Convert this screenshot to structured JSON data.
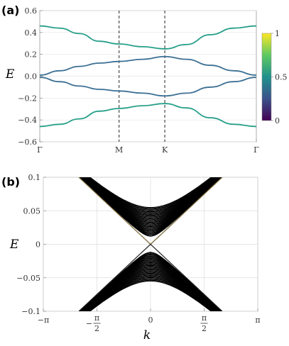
{
  "chart_data": [
    {
      "panel": "(a)",
      "type": "line",
      "ylabel": "E",
      "xlabel": "",
      "ylim": [
        -0.6,
        0.6
      ],
      "yticks": [
        "0.6",
        "0.4",
        "0.2",
        "0.0",
        "-0.2",
        "-0.4",
        "-0.6"
      ],
      "xticks": [
        "Γ",
        "M",
        "K",
        "Γ"
      ],
      "xtick_positions": [
        0,
        1,
        1.5773,
        2.732
      ],
      "vlines_at": [
        1,
        1.5773
      ],
      "grid": true,
      "colorbar": {
        "range": [
          0,
          1
        ],
        "ticks": [
          "1",
          "0.5",
          "0"
        ],
        "colors": [
          "#440154",
          "#3b528b",
          "#21918c",
          "#5ec962",
          "#fde725"
        ]
      },
      "series": [
        {
          "color": "#27a08a",
          "points": [
            [
              0,
              0.46
            ],
            [
              0.25,
              0.44
            ],
            [
              0.5,
              0.39
            ],
            [
              0.75,
              0.32
            ],
            [
              1.0,
              0.295
            ],
            [
              1.3,
              0.27
            ],
            [
              1.5773,
              0.25
            ],
            [
              1.85,
              0.29
            ],
            [
              2.15,
              0.38
            ],
            [
              2.45,
              0.44
            ],
            [
              2.732,
              0.46
            ]
          ]
        },
        {
          "color": "#3b6f94",
          "points": [
            [
              0,
              0.01
            ],
            [
              0.25,
              0.05
            ],
            [
              0.5,
              0.09
            ],
            [
              0.75,
              0.12
            ],
            [
              1.0,
              0.135
            ],
            [
              1.3,
              0.155
            ],
            [
              1.5773,
              0.18
            ],
            [
              1.85,
              0.155
            ],
            [
              2.15,
              0.1
            ],
            [
              2.45,
              0.05
            ],
            [
              2.732,
              0.01
            ]
          ]
        },
        {
          "color": "#3b6f94",
          "points": [
            [
              0,
              -0.01
            ],
            [
              0.25,
              -0.05
            ],
            [
              0.5,
              -0.09
            ],
            [
              0.75,
              -0.12
            ],
            [
              1.0,
              -0.135
            ],
            [
              1.3,
              -0.155
            ],
            [
              1.5773,
              -0.18
            ],
            [
              1.85,
              -0.155
            ],
            [
              2.15,
              -0.1
            ],
            [
              2.45,
              -0.05
            ],
            [
              2.732,
              -0.01
            ]
          ]
        },
        {
          "color": "#27a08a",
          "points": [
            [
              0,
              -0.46
            ],
            [
              0.25,
              -0.44
            ],
            [
              0.5,
              -0.39
            ],
            [
              0.75,
              -0.32
            ],
            [
              1.0,
              -0.295
            ],
            [
              1.3,
              -0.27
            ],
            [
              1.5773,
              -0.25
            ],
            [
              1.85,
              -0.29
            ],
            [
              2.15,
              -0.38
            ],
            [
              2.45,
              -0.44
            ],
            [
              2.732,
              -0.46
            ]
          ]
        }
      ]
    },
    {
      "panel": "(b)",
      "type": "line",
      "ylabel": "E",
      "xlabel": "k",
      "xlim": [
        -3.14159,
        3.14159
      ],
      "ylim": [
        -0.1,
        0.1
      ],
      "yticks": [
        "0.1",
        "0.05",
        "0",
        "-0.05",
        "-0.1"
      ],
      "xticks": [
        {
          "num": "",
          "den": "",
          "label": "−π",
          "value": -3.14159
        },
        {
          "num": "π",
          "den": "2",
          "label": "−",
          "value": -1.5708
        },
        {
          "num": "",
          "den": "",
          "label": "0",
          "value": 0
        },
        {
          "num": "π",
          "den": "2",
          "label": "",
          "value": 1.5708
        },
        {
          "num": "",
          "den": "",
          "label": "π",
          "value": 3.14159
        }
      ],
      "grid": true,
      "band_color": "#000000",
      "edge_color": "#c8a24a",
      "band_description_values": {
        "gap_edges": [
          0.012,
          -0.012
        ],
        "outer_edges_at_k0": [
          0.055,
          -0.055
        ],
        "k_extent": [
          -2.1,
          2.1
        ]
      }
    }
  ]
}
